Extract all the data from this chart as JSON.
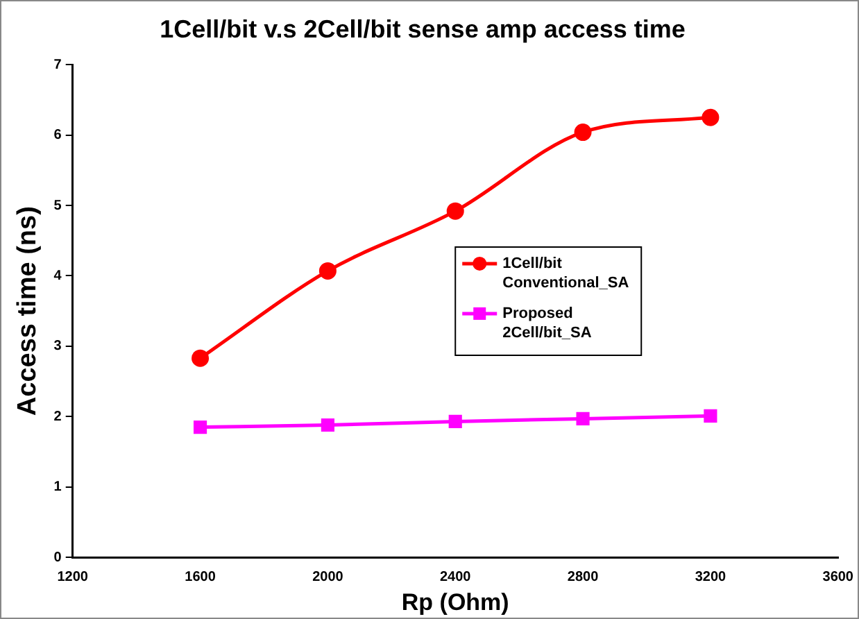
{
  "chart_data": {
    "type": "line",
    "title": "1Cell/bit v.s 2Cell/bit sense amp access time",
    "xlabel": "Rp (Ohm)",
    "ylabel": "Access time (ns)",
    "x": [
      1600,
      2000,
      2400,
      2800,
      3200
    ],
    "series": [
      {
        "name": "1Cell/bit Conventional_SA",
        "color": "#ff0000",
        "marker": "circle",
        "values": [
          2.83,
          4.07,
          4.92,
          6.04,
          6.25
        ]
      },
      {
        "name": "Proposed 2Cell/bit_SA",
        "color": "#ff00ff",
        "marker": "square",
        "values": [
          1.85,
          1.88,
          1.93,
          1.97,
          2.01
        ]
      }
    ],
    "xlim": [
      1200,
      3600
    ],
    "xticks": [
      1200,
      1600,
      2000,
      2400,
      2800,
      3200,
      3600
    ],
    "ylim": [
      0,
      7
    ],
    "yticks": [
      0,
      1,
      2,
      3,
      4,
      5,
      6,
      7
    ],
    "grid": false,
    "legend": "right"
  }
}
